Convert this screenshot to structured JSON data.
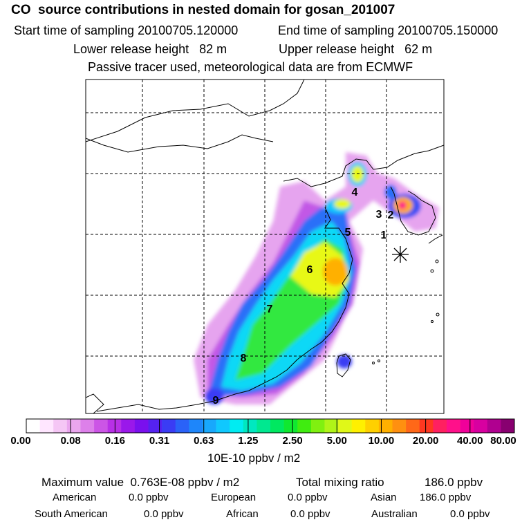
{
  "header": {
    "title": "CO  source contributions in nested domain for gosan_201007",
    "start_label": "Start time of sampling 20100705.120000",
    "end_label": "End time of sampling 20100705.150000",
    "lower_label": "Lower release height   82 m",
    "upper_label": "Upper release height   62 m",
    "note": "Passive tracer used, meteorological data are from ECMWF"
  },
  "map": {
    "source_labels": [
      "1",
      "2",
      "3",
      "4",
      "5",
      "6",
      "7",
      "8",
      "9"
    ],
    "receptor_marker": "receptor-star-icon"
  },
  "colorbar": {
    "ticks": [
      "0.00",
      "0.08",
      "0.16",
      "0.31",
      "0.63",
      "1.25",
      "2.50",
      "5.00",
      "10.00",
      "20.00",
      "40.00",
      "80.00"
    ],
    "colors": [
      "#ffffff",
      "#ffe6ff",
      "#f5c6f5",
      "#eaa6ee",
      "#dd80ea",
      "#cc55e6",
      "#b830e6",
      "#9a18ea",
      "#7a10ee",
      "#5522f0",
      "#3a3cf4",
      "#2a62f8",
      "#1e86fa",
      "#18a8fc",
      "#10c8fe",
      "#00ecf2",
      "#00e8c0",
      "#00e890",
      "#00e860",
      "#10e830",
      "#40ec10",
      "#80f010",
      "#b0f418",
      "#e0f818",
      "#fff000",
      "#ffd000",
      "#ffb000",
      "#ff9010",
      "#ff6818",
      "#ff3820",
      "#ff2060",
      "#ff108a",
      "#f0009a",
      "#d800a0",
      "#b00090",
      "#880070"
    ],
    "units": "10E-10 ppbv / m2"
  },
  "stats": {
    "max_label": "Maximum value  0.763E-08 ppbv / m2",
    "total_label": "Total mixing ratio",
    "total_value": "186.0 ppbv",
    "sources": [
      {
        "name": "American",
        "value": "0.0 ppbv"
      },
      {
        "name": "European",
        "value": "0.0 ppbv"
      },
      {
        "name": "Asian",
        "value": "186.0 ppbv"
      },
      {
        "name": "South American",
        "value": "0.0 ppbv"
      },
      {
        "name": "African",
        "value": "0.0 ppbv"
      },
      {
        "name": "Australian",
        "value": "0.0 ppbv"
      }
    ]
  }
}
